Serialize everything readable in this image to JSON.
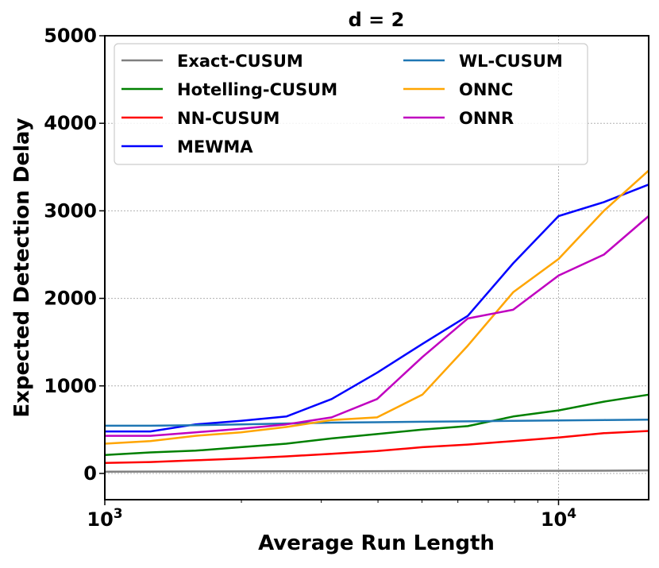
{
  "chart_data": {
    "type": "line",
    "title": "d = 2",
    "xlabel": "Average Run Length",
    "ylabel": "Expected Detection Delay",
    "xscale": "log",
    "xlim": [
      1000,
      15800
    ],
    "ylim": [
      -300,
      5000
    ],
    "grid": "dotted",
    "legend_placement": "top-left",
    "yticks": [
      0,
      1000,
      2000,
      3000,
      4000,
      5000
    ],
    "ytick_labels": [
      "0",
      "1000",
      "2000",
      "3000",
      "4000",
      "5000"
    ],
    "xtick_labels": [
      {
        "base": "10",
        "exp": "3",
        "value": 1000
      },
      {
        "base": "10",
        "exp": "4",
        "value": 10000
      }
    ],
    "x": [
      1000,
      1260,
      1585,
      1995,
      2512,
      3162,
      3981,
      5012,
      6310,
      7943,
      10000,
      12589,
      15800
    ],
    "series": [
      {
        "name": "Exact-CUSUM",
        "color": "#808080",
        "values": [
          20,
          21,
          22,
          23,
          24,
          25,
          26,
          27,
          28,
          29,
          30,
          31,
          35
        ]
      },
      {
        "name": "Hotelling-CUSUM",
        "color": "#008000",
        "values": [
          210,
          240,
          260,
          300,
          340,
          400,
          450,
          500,
          540,
          650,
          720,
          820,
          900
        ]
      },
      {
        "name": "NN-CUSUM",
        "color": "#ff0000",
        "values": [
          120,
          130,
          150,
          170,
          195,
          225,
          255,
          300,
          330,
          370,
          410,
          460,
          485
        ]
      },
      {
        "name": "MEWMA",
        "color": "#0000ff",
        "values": [
          480,
          480,
          560,
          600,
          650,
          850,
          1150,
          1480,
          1800,
          2400,
          2940,
          3100,
          3300
        ]
      },
      {
        "name": "WL-CUSUM",
        "color": "#1f77b4",
        "values": [
          545,
          545,
          550,
          560,
          570,
          580,
          585,
          590,
          595,
          600,
          605,
          610,
          615
        ]
      },
      {
        "name": "ONNC",
        "color": "#ffa500",
        "values": [
          340,
          370,
          430,
          470,
          530,
          610,
          640,
          900,
          1460,
          2070,
          2450,
          3000,
          3460
        ]
      },
      {
        "name": "ONNR",
        "color": "#c000c0",
        "values": [
          430,
          430,
          470,
          510,
          560,
          640,
          850,
          1330,
          1770,
          1870,
          2260,
          2500,
          2940
        ]
      }
    ]
  }
}
